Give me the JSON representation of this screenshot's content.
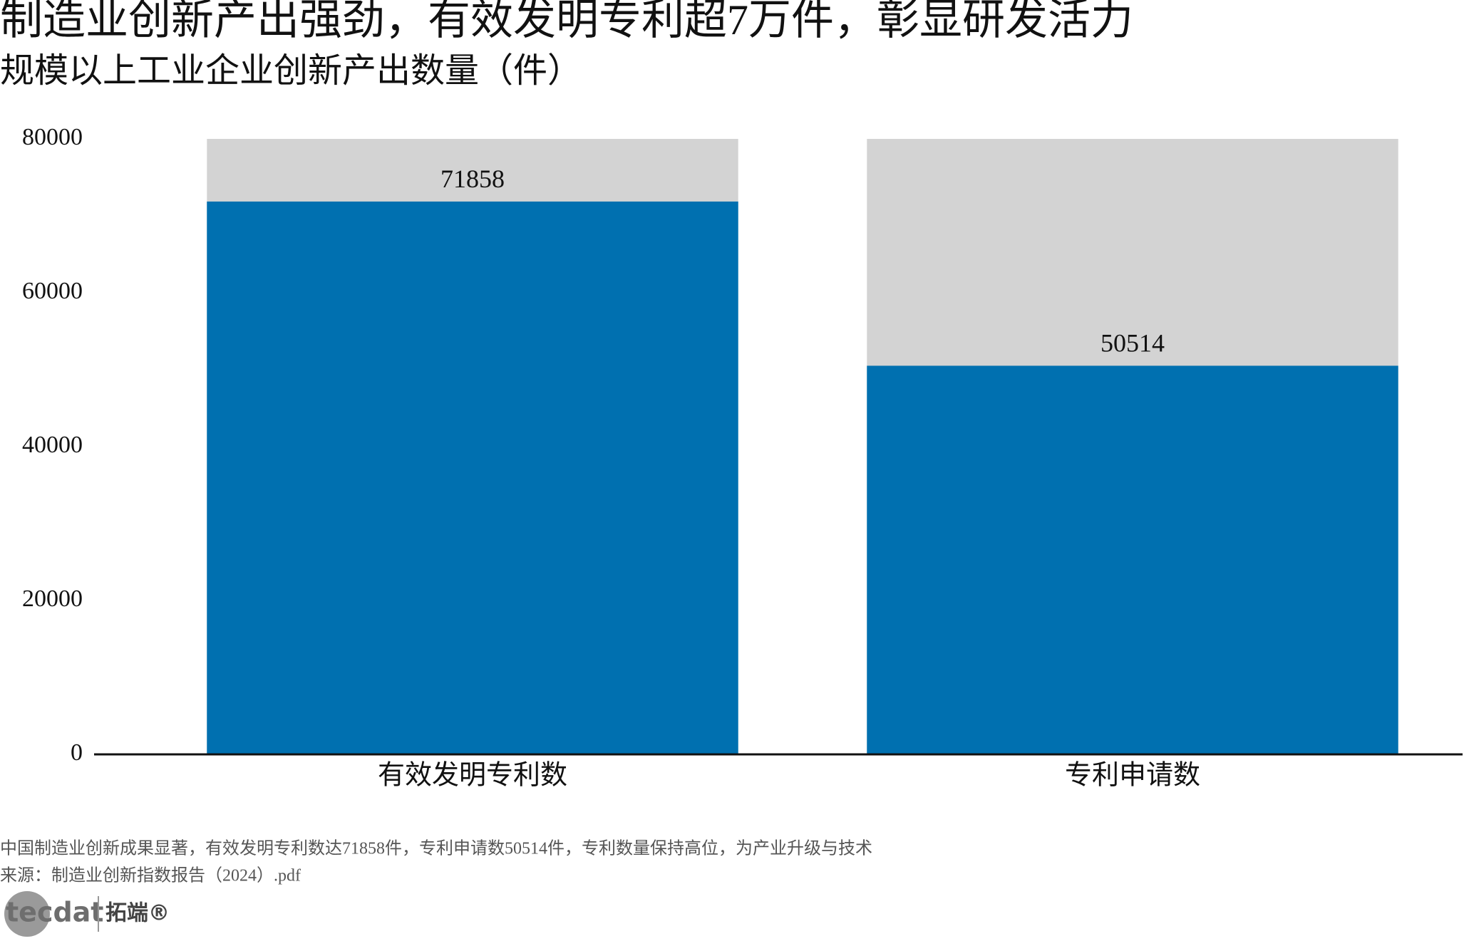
{
  "chart_data": {
    "type": "bar",
    "title": "制造业创新产出强劲，有效发明专利超7万件，彰显研发活力",
    "subtitle": "规模以上工业企业创新产出数量（件）",
    "categories": [
      "有效发明专利数",
      "专利申请数"
    ],
    "values": [
      71858,
      50514
    ],
    "color": "#0070b0",
    "background_color": "#d3d3d3",
    "ylim": [
      0,
      80000
    ],
    "yticks": [
      0,
      20000,
      40000,
      60000,
      80000
    ],
    "grid": false,
    "note": "中国制造业创新成果显著，有效发明专利数达71858件，专利申请数50514件，专利数量保持高位，为产业升级与技术",
    "source": "来源：制造业创新指数报告（2024）.pdf",
    "logo": {
      "latin": "tecdat",
      "chinese": "拓端®"
    }
  }
}
